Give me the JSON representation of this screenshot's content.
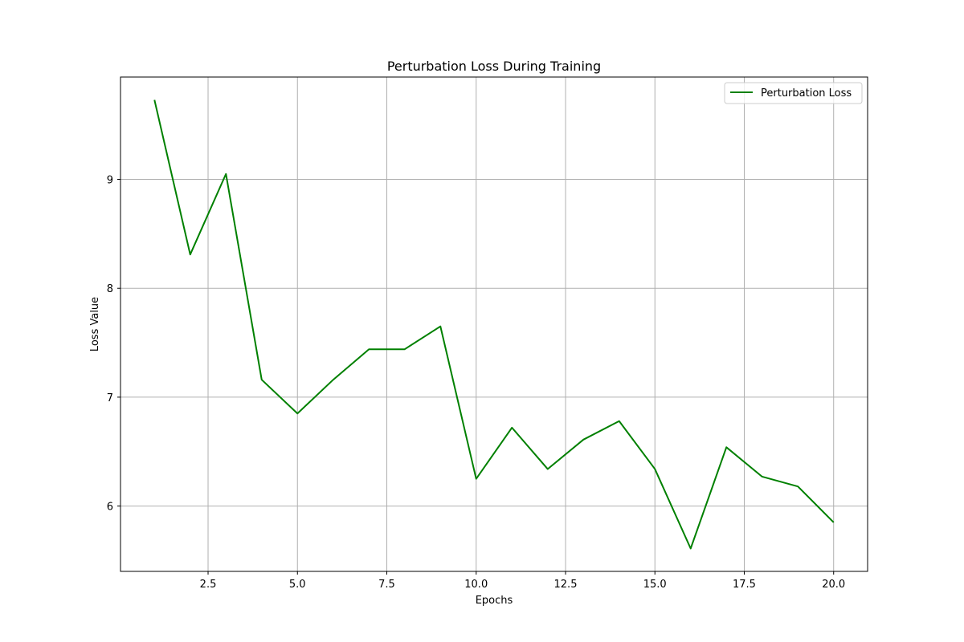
{
  "chart_data": {
    "type": "line",
    "title": "Perturbation Loss During Training",
    "xlabel": "Epochs",
    "ylabel": "Loss Value",
    "x": [
      1,
      2,
      3,
      4,
      5,
      6,
      7,
      8,
      9,
      10,
      11,
      12,
      13,
      14,
      15,
      16,
      17,
      18,
      19,
      20
    ],
    "series": [
      {
        "name": "Perturbation Loss",
        "color": "#008000",
        "values": [
          9.73,
          8.31,
          9.05,
          7.16,
          6.85,
          7.16,
          7.44,
          7.44,
          7.65,
          6.25,
          6.72,
          6.34,
          6.61,
          6.78,
          6.34,
          5.61,
          6.54,
          6.27,
          6.18,
          5.85
        ]
      }
    ],
    "xlim": [
      0.05,
      20.95
    ],
    "ylim": [
      5.4,
      9.94
    ],
    "xticks": [
      2.5,
      5.0,
      7.5,
      10.0,
      12.5,
      15.0,
      17.5,
      20.0
    ],
    "xtick_labels": [
      "2.5",
      "5.0",
      "7.5",
      "10.0",
      "12.5",
      "15.0",
      "17.5",
      "20.0"
    ],
    "yticks": [
      6,
      7,
      8,
      9
    ],
    "ytick_labels": [
      "6",
      "7",
      "8",
      "9"
    ],
    "grid": true,
    "legend_position": "top-right"
  }
}
